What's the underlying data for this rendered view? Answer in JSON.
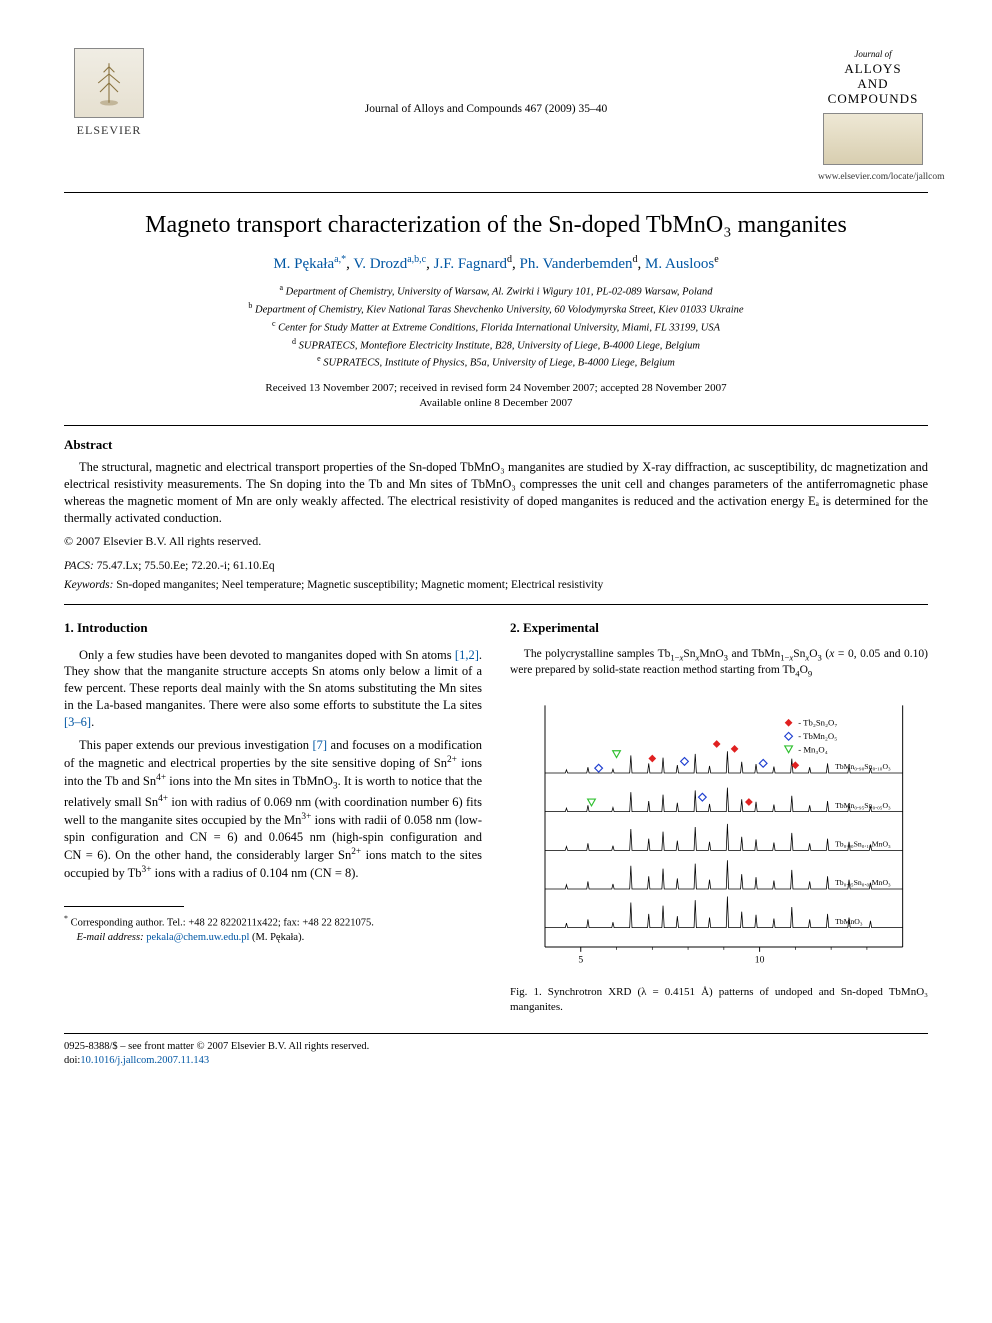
{
  "header": {
    "publisher": "ELSEVIER",
    "journal_ref": "Journal of Alloys and Compounds 467 (2009) 35–40",
    "badge_top": "Journal of",
    "badge_main": "ALLOYS\nAND COMPOUNDS",
    "url": "www.elsevier.com/locate/jallcom"
  },
  "title": "Magneto transport characterization of the Sn-doped TbMnO₃ manganites",
  "authors": [
    {
      "name": "M. Pękała",
      "aff": "a,*"
    },
    {
      "name": "V. Drozd",
      "aff": "a,b,c"
    },
    {
      "name": "J.F. Fagnard",
      "aff": "d"
    },
    {
      "name": "Ph. Vanderbemden",
      "aff": "d"
    },
    {
      "name": "M. Ausloos",
      "aff": "e"
    }
  ],
  "affiliations": [
    {
      "sup": "a",
      "text": "Department of Chemistry, University of Warsaw, Al. Zwirki i Wigury 101, PL-02-089 Warsaw, Poland"
    },
    {
      "sup": "b",
      "text": "Department of Chemistry, Kiev National Taras Shevchenko University, 60 Volodymyrska Street, Kiev 01033 Ukraine"
    },
    {
      "sup": "c",
      "text": "Center for Study Matter at Extreme Conditions, Florida International University, Miami, FL 33199, USA"
    },
    {
      "sup": "d",
      "text": "SUPRATECS, Montefiore Electricity Institute, B28, University of Liege, B-4000 Liege, Belgium"
    },
    {
      "sup": "e",
      "text": "SUPRATECS, Institute of Physics, B5a, University of Liege, B-4000 Liege, Belgium"
    }
  ],
  "dates": {
    "line1": "Received 13 November 2007; received in revised form 24 November 2007; accepted 28 November 2007",
    "line2": "Available online 8 December 2007"
  },
  "abstract": {
    "head": "Abstract",
    "body": "The structural, magnetic and electrical transport properties of the Sn-doped TbMnO₃ manganites are studied by X-ray diffraction, ac susceptibility, dc magnetization and electrical resistivity measurements. The Sn doping into the Tb and Mn sites of TbMnO₃ compresses the unit cell and changes parameters of the antiferromagnetic phase whereas the magnetic moment of Mn are only weakly affected. The electrical resistivity of doped manganites is reduced and the activation energy Eₐ is determined for the thermally activated conduction.",
    "copyright": "© 2007 Elsevier B.V. All rights reserved."
  },
  "pacs": {
    "label": "PACS:",
    "codes": "75.47.Lx; 75.50.Ee; 72.20.-i; 61.10.Eq"
  },
  "keywords": {
    "label": "Keywords:",
    "list": "Sn-doped manganites; Neel temperature; Magnetic susceptibility; Magnetic moment; Electrical resistivity"
  },
  "sections": {
    "intro": {
      "head": "1.  Introduction",
      "p1": "Only a few studies have been devoted to manganites doped with Sn atoms [1,2]. They show that the manganite structure accepts Sn atoms only below a limit of a few percent. These reports deal mainly with the Sn atoms substituting the Mn sites in the La-based manganites. There were also some efforts to substitute the La sites [3–6].",
      "p2": "This paper extends our previous investigation [7] and focuses on a modification of the magnetic and electrical properties by the site sensitive doping of Sn²⁺ ions into the Tb and Sn⁴⁺ ions into the Mn sites in TbMnO₃. It is worth to notice that the relatively small Sn⁴⁺ ion with radius of 0.069 nm (with coordination number 6) fits well to the manganite sites occupied by the Mn³⁺ ions with radii of 0.058 nm (low-spin configuration and CN = 6) and 0.0645 nm (high-spin configuration and CN = 6). On the other hand, the considerably larger Sn²⁺ ions match to the sites occupied by Tb³⁺ ions with a radius of 0.104 nm (CN = 8).",
      "refs": [
        "1,2",
        "3–6",
        "7"
      ]
    },
    "exp": {
      "head": "2.  Experimental",
      "p1": "The polycrystalline samples Tb₁₋ₓSnₓMnO₃ and TbMn₁₋ₓSnₓO₃ (x = 0, 0.05 and 0.10) were prepared by solid-state reaction method starting from Tb₄O₉"
    }
  },
  "figure1": {
    "caption": "Fig. 1. Synchrotron XRD (λ = 0.4151 Å) patterns of undoped and Sn-doped TbMnO₃ manganites.",
    "type": "xrd-pattern",
    "x_range": [
      4,
      14
    ],
    "x_ticks": [
      5,
      10
    ],
    "background_color": "#ffffff",
    "axis_color": "#000000",
    "line_color": "#000000",
    "line_width": 0.8,
    "legend": [
      {
        "marker": "diamond-filled",
        "color": "#e02020",
        "label": "Tb₂Sn₂O₇"
      },
      {
        "marker": "diamond-open",
        "color": "#2040d0",
        "label": "TbMn₂O₅"
      },
      {
        "marker": "triangle-down",
        "color": "#30c030",
        "label": "Mn₃O₄"
      }
    ],
    "trace_labels": [
      "TbMn₀.₉₀Sn₀.₁₀O₃",
      "TbMn₀.₉₅Sn₀.₀₅O₃",
      "Tb₀.₉₀Sn₀.₁₀MnO₃",
      "Tb₀.₉₅Sn₀.₀₅MnO₃",
      "TbMnO₃"
    ],
    "trace_offsets": [
      180,
      140,
      100,
      60,
      20
    ],
    "label_fontsize": 8,
    "legend_fontsize": 8,
    "tick_fontsize": 9
  },
  "footnote": {
    "marker": "*",
    "text": "Corresponding author. Tel.: +48 22 8220211x422; fax: +48 22 8221075.",
    "email_label": "E-mail address:",
    "email": "pekala@chem.uw.edu.pl",
    "email_who": "(M. Pękała)."
  },
  "bottom": {
    "line1": "0925-8388/$ – see front matter © 2007 Elsevier B.V. All rights reserved.",
    "doi_label": "doi:",
    "doi": "10.1016/j.jallcom.2007.11.143"
  },
  "colors": {
    "link": "#0056a3",
    "text": "#000000",
    "red": "#e02020",
    "blue": "#2040d0",
    "green": "#30c030"
  }
}
